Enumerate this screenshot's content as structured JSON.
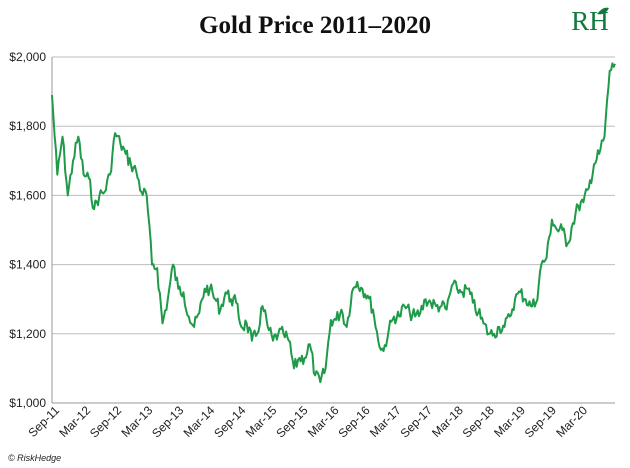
{
  "logo": {
    "text": "RH",
    "color": "#0f7a3c"
  },
  "copyright": "© RiskHedge",
  "chart_data": {
    "type": "line",
    "title": "Gold Price 2011–2020",
    "xlabel": "",
    "ylabel": "",
    "x_start": "2011-09",
    "x_end": "2020-08",
    "ylim": [
      1000,
      2050
    ],
    "y_ticks": [
      1000,
      1200,
      1400,
      1600,
      1800,
      2000
    ],
    "y_tick_labels": [
      "$1,000",
      "$1,200",
      "$1,400",
      "$1,600",
      "$1,800",
      "$2,000"
    ],
    "x_tick_labels": [
      "Sep-11",
      "Mar-12",
      "Sep-12",
      "Mar-13",
      "Sep-13",
      "Mar-14",
      "Sep-14",
      "Mar-15",
      "Sep-15",
      "Mar-16",
      "Sep-16",
      "Mar-17",
      "Sep-17",
      "Mar-18",
      "Sep-18",
      "Mar-19",
      "Sep-19",
      "Mar-20"
    ],
    "grid": true,
    "line_color": "#1e9a48",
    "series": [
      {
        "x": [
          "2011-09",
          "2011-10",
          "2011-11",
          "2011-12",
          "2012-01",
          "2012-02",
          "2012-03",
          "2012-04",
          "2012-05",
          "2012-06",
          "2012-07",
          "2012-08",
          "2012-09",
          "2012-10",
          "2012-11",
          "2012-12",
          "2013-01",
          "2013-02",
          "2013-03",
          "2013-04",
          "2013-05",
          "2013-06",
          "2013-07",
          "2013-08",
          "2013-09",
          "2013-10",
          "2013-11",
          "2013-12",
          "2014-01",
          "2014-02",
          "2014-03",
          "2014-04",
          "2014-05",
          "2014-06",
          "2014-07",
          "2014-08",
          "2014-09",
          "2014-10",
          "2014-11",
          "2014-12",
          "2015-01",
          "2015-02",
          "2015-03",
          "2015-04",
          "2015-05",
          "2015-06",
          "2015-07",
          "2015-08",
          "2015-09",
          "2015-10",
          "2015-11",
          "2015-12",
          "2016-01",
          "2016-02",
          "2016-03",
          "2016-04",
          "2016-05",
          "2016-06",
          "2016-07",
          "2016-08",
          "2016-09",
          "2016-10",
          "2016-11",
          "2016-12",
          "2017-01",
          "2017-02",
          "2017-03",
          "2017-04",
          "2017-05",
          "2017-06",
          "2017-07",
          "2017-08",
          "2017-09",
          "2017-10",
          "2017-11",
          "2017-12",
          "2018-01",
          "2018-02",
          "2018-03",
          "2018-04",
          "2018-05",
          "2018-06",
          "2018-07",
          "2018-08",
          "2018-09",
          "2018-10",
          "2018-11",
          "2018-12",
          "2019-01",
          "2019-02",
          "2019-03",
          "2019-04",
          "2019-05",
          "2019-06",
          "2019-07",
          "2019-08",
          "2019-09",
          "2019-10",
          "2019-11",
          "2019-12",
          "2020-01",
          "2020-02",
          "2020-03",
          "2020-04",
          "2020-05",
          "2020-06",
          "2020-07",
          "2020-08"
        ],
        "values": [
          1890,
          1660,
          1770,
          1600,
          1700,
          1770,
          1660,
          1650,
          1560,
          1600,
          1610,
          1660,
          1780,
          1750,
          1720,
          1690,
          1670,
          1610,
          1600,
          1400,
          1390,
          1230,
          1300,
          1400,
          1330,
          1320,
          1250,
          1220,
          1260,
          1330,
          1330,
          1300,
          1270,
          1320,
          1300,
          1290,
          1220,
          1230,
          1180,
          1200,
          1280,
          1220,
          1180,
          1200,
          1200,
          1180,
          1100,
          1130,
          1130,
          1170,
          1080,
          1060,
          1100,
          1240,
          1240,
          1270,
          1220,
          1320,
          1350,
          1330,
          1310,
          1270,
          1180,
          1150,
          1210,
          1250,
          1250,
          1280,
          1260,
          1250,
          1260,
          1300,
          1290,
          1280,
          1280,
          1270,
          1340,
          1330,
          1320,
          1330,
          1290,
          1260,
          1230,
          1200,
          1200,
          1220,
          1220,
          1250,
          1300,
          1320,
          1300,
          1280,
          1290,
          1400,
          1420,
          1530,
          1500,
          1500,
          1460,
          1520,
          1570,
          1580,
          1620,
          1690,
          1720,
          1770,
          1960,
          1980
        ]
      }
    ]
  }
}
